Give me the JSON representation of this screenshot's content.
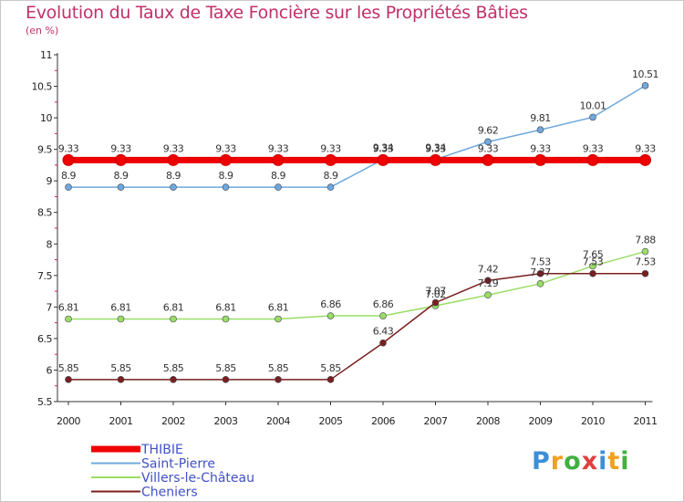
{
  "header": {
    "title": "Evolution du Taux de Taxe Foncière sur les Propriétés Bâties",
    "subtitle": "(en %)"
  },
  "logo": {
    "letters": [
      "P",
      "r",
      "o",
      "x",
      "i",
      "t",
      "i"
    ],
    "colors": [
      "#3b8fd8",
      "#f0a020",
      "#40b040",
      "#e04040",
      "#3b8fd8",
      "#f0a020",
      "#40b040"
    ]
  },
  "chart_data": {
    "type": "line",
    "title": "Evolution du Taux de Taxe Foncière sur les Propriétés Bâties",
    "ylabel": "(en %)",
    "xlabel": "",
    "categories": [
      "2000",
      "2001",
      "2002",
      "2003",
      "2004",
      "2005",
      "2006",
      "2007",
      "2008",
      "2009",
      "2010",
      "2011"
    ],
    "ylim": [
      5.5,
      11
    ],
    "yticks": [
      5.5,
      6,
      6.5,
      7,
      7.5,
      8,
      8.5,
      9,
      9.5,
      10,
      10.5,
      11
    ],
    "ytick_labels": [
      "5.5",
      "6",
      "6.5",
      "7",
      "7.5",
      "8",
      "8.5",
      "9",
      "9.5",
      "10",
      "10.5",
      "11"
    ],
    "series": [
      {
        "name": "THIBIE",
        "color": "#ee0000",
        "values": [
          9.33,
          9.33,
          9.33,
          9.33,
          9.33,
          9.33,
          9.33,
          9.33,
          9.33,
          9.33,
          9.33,
          9.33
        ],
        "labels": [
          "9.33",
          "9.33",
          "9.33",
          "9.33",
          "9.33",
          "9.33",
          "9.33",
          "9.33",
          "9.33",
          "9.33",
          "9.33",
          "9.33"
        ]
      },
      {
        "name": "Saint-Pierre",
        "color": "#6fa8dc",
        "values": [
          8.9,
          8.9,
          8.9,
          8.9,
          8.9,
          8.9,
          9.34,
          9.34,
          9.62,
          9.81,
          10.01,
          10.51
        ],
        "labels": [
          "8.9",
          "8.9",
          "8.9",
          "8.9",
          "8.9",
          "8.9",
          "9.34",
          "9.34",
          "9.62",
          "9.81",
          "10.01",
          "10.51"
        ]
      },
      {
        "name": "Villers-le-Château",
        "color": "#99dd66",
        "values": [
          6.81,
          6.81,
          6.81,
          6.81,
          6.81,
          6.86,
          6.86,
          7.02,
          7.19,
          7.37,
          7.65,
          7.88
        ],
        "labels": [
          "6.81",
          "6.81",
          "6.81",
          "6.81",
          "6.81",
          "6.86",
          "6.86",
          "7.02",
          "7.19",
          "7.37",
          "7.65",
          "7.88"
        ]
      },
      {
        "name": "Cheniers",
        "color": "#7a1f1f",
        "values": [
          5.85,
          5.85,
          5.85,
          5.85,
          5.85,
          5.85,
          6.43,
          7.07,
          7.42,
          7.53,
          7.53,
          7.53
        ],
        "labels": [
          "5.85",
          "5.85",
          "5.85",
          "5.85",
          "5.85",
          "5.85",
          "6.43",
          "7.07",
          "7.42",
          "7.53",
          "7.53",
          "7.53"
        ]
      }
    ],
    "legend": [
      "THIBIE",
      "Saint-Pierre",
      "Villers-le-Château",
      "Cheniers"
    ],
    "legend_position": "bottom-left",
    "grid": false
  }
}
